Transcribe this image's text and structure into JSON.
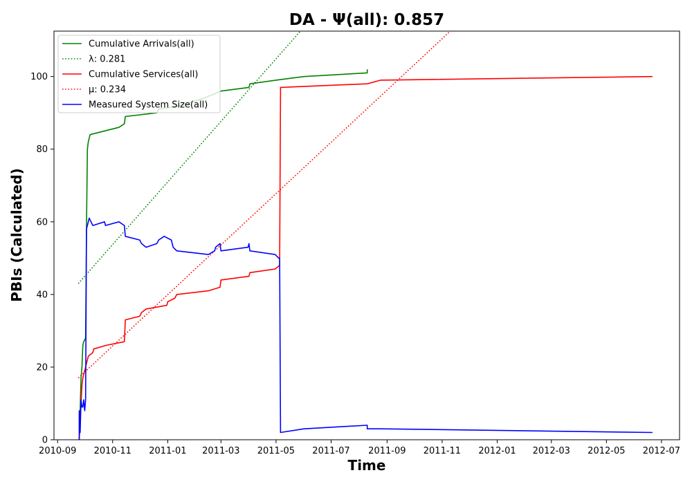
{
  "chart_data": {
    "type": "line",
    "title": "DA -  Ψ(all): 0.857",
    "xlabel": "Time",
    "ylabel": "PBIs (Calculated)",
    "xlim": [
      "2010-08-28",
      "2012-07-21"
    ],
    "ylim": [
      0,
      112.5
    ],
    "x_ticks": [
      "2010-09",
      "2010-11",
      "2011-01",
      "2011-03",
      "2011-05",
      "2011-07",
      "2011-09",
      "2011-11",
      "2012-01",
      "2012-03",
      "2012-05",
      "2012-07"
    ],
    "y_ticks": [
      0,
      20,
      40,
      60,
      80,
      100
    ],
    "grid": false,
    "legend_position": "top-left",
    "series": [
      {
        "name": "Cumulative Arrivals(all)",
        "color": "#008000",
        "style": "solid",
        "points": [
          [
            "2010-09-25",
            0
          ],
          [
            "2010-09-26",
            8
          ],
          [
            "2010-09-27",
            17
          ],
          [
            "2010-09-28",
            20
          ],
          [
            "2010-09-29",
            26
          ],
          [
            "2010-09-30",
            27
          ],
          [
            "2010-10-02",
            28
          ],
          [
            "2010-10-03",
            59
          ],
          [
            "2010-10-04",
            80
          ],
          [
            "2010-10-05",
            82
          ],
          [
            "2010-10-07",
            84
          ],
          [
            "2010-11-08",
            86
          ],
          [
            "2010-11-14",
            87
          ],
          [
            "2010-11-15",
            89
          ],
          [
            "2010-12-20",
            90
          ],
          [
            "2010-12-22",
            91
          ],
          [
            "2011-01-15",
            92
          ],
          [
            "2011-02-10",
            94
          ],
          [
            "2011-03-01",
            96
          ],
          [
            "2011-04-01",
            97
          ],
          [
            "2011-04-02",
            98
          ],
          [
            "2011-05-01",
            99
          ],
          [
            "2011-06-01",
            100
          ],
          [
            "2011-08-10",
            101
          ],
          [
            "2011-08-10",
            102
          ]
        ]
      },
      {
        "name": "λ: 0.281",
        "color": "#008000",
        "style": "dotted",
        "points": [
          [
            "2010-09-24",
            43
          ],
          [
            "2011-05-28",
            112.5
          ]
        ]
      },
      {
        "name": "Cumulative Services(all)",
        "color": "#ff0000",
        "style": "solid",
        "points": [
          [
            "2010-09-25",
            0
          ],
          [
            "2010-09-27",
            10
          ],
          [
            "2010-09-28",
            15
          ],
          [
            "2010-09-29",
            17
          ],
          [
            "2010-10-04",
            22
          ],
          [
            "2010-10-05",
            23
          ],
          [
            "2010-10-10",
            24
          ],
          [
            "2010-10-11",
            25
          ],
          [
            "2010-10-25",
            26
          ],
          [
            "2010-11-14",
            27
          ],
          [
            "2010-11-15",
            33
          ],
          [
            "2010-12-01",
            34
          ],
          [
            "2010-12-03",
            35
          ],
          [
            "2010-12-08",
            36
          ],
          [
            "2010-12-31",
            37
          ],
          [
            "2011-01-01",
            38
          ],
          [
            "2011-01-09",
            39
          ],
          [
            "2011-01-11",
            40
          ],
          [
            "2011-02-15",
            41
          ],
          [
            "2011-02-28",
            42
          ],
          [
            "2011-03-01",
            44
          ],
          [
            "2011-04-01",
            45
          ],
          [
            "2011-04-02",
            46
          ],
          [
            "2011-04-30",
            47
          ],
          [
            "2011-05-05",
            48
          ],
          [
            "2011-05-06",
            97
          ],
          [
            "2011-08-10",
            98
          ],
          [
            "2011-08-25",
            99
          ],
          [
            "2012-06-21",
            100
          ]
        ]
      },
      {
        "name": "μ: 0.234",
        "color": "#ff0000",
        "style": "dotted",
        "points": [
          [
            "2010-09-24",
            17
          ],
          [
            "2011-11-10",
            112.5
          ]
        ]
      },
      {
        "name": "Measured System Size(all)",
        "color": "#0000ff",
        "style": "solid",
        "points": [
          [
            "2010-09-25",
            0
          ],
          [
            "2010-09-25",
            8
          ],
          [
            "2010-09-26",
            2
          ],
          [
            "2010-09-27",
            11
          ],
          [
            "2010-09-28",
            9
          ],
          [
            "2010-09-29",
            9
          ],
          [
            "2010-09-30",
            11
          ],
          [
            "2010-10-01",
            8
          ],
          [
            "2010-10-02",
            11
          ],
          [
            "2010-10-03",
            58
          ],
          [
            "2010-10-04",
            59
          ],
          [
            "2010-10-05",
            60
          ],
          [
            "2010-10-06",
            61
          ],
          [
            "2010-10-08",
            60
          ],
          [
            "2010-10-10",
            59
          ],
          [
            "2010-10-23",
            60
          ],
          [
            "2010-10-24",
            59
          ],
          [
            "2010-11-08",
            60
          ],
          [
            "2010-11-14",
            59
          ],
          [
            "2010-11-15",
            56
          ],
          [
            "2010-12-01",
            55
          ],
          [
            "2010-12-03",
            54
          ],
          [
            "2010-12-08",
            53
          ],
          [
            "2010-12-20",
            54
          ],
          [
            "2010-12-22",
            55
          ],
          [
            "2010-12-28",
            56
          ],
          [
            "2011-01-05",
            55
          ],
          [
            "2011-01-07",
            53
          ],
          [
            "2011-01-11",
            52
          ],
          [
            "2011-02-15",
            51
          ],
          [
            "2011-02-22",
            52
          ],
          [
            "2011-02-23",
            53
          ],
          [
            "2011-02-28",
            54
          ],
          [
            "2011-03-01",
            52
          ],
          [
            "2011-03-31",
            53
          ],
          [
            "2011-04-01",
            54
          ],
          [
            "2011-04-02",
            52
          ],
          [
            "2011-04-30",
            51
          ],
          [
            "2011-05-04",
            50
          ],
          [
            "2011-05-05",
            50
          ],
          [
            "2011-05-06",
            2
          ],
          [
            "2011-06-01",
            3
          ],
          [
            "2011-08-10",
            4
          ],
          [
            "2011-08-10",
            3
          ],
          [
            "2011-08-25",
            3
          ],
          [
            "2012-06-21",
            2
          ]
        ]
      }
    ]
  }
}
